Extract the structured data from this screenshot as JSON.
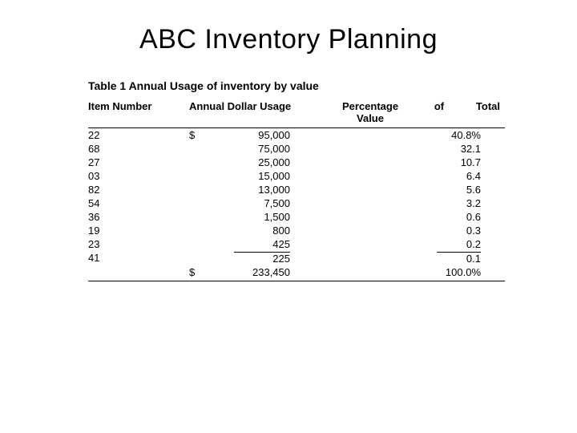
{
  "title": "ABC Inventory Planning",
  "table": {
    "type": "table",
    "caption": "Table 1 Annual Usage of inventory by value",
    "background_color": "#ffffff",
    "text_color": "#000000",
    "rule_color": "#000000",
    "font_family": "Arial",
    "caption_fontsize": 14,
    "header_fontsize": 13,
    "body_fontsize": 13,
    "columns": {
      "item": "Item Number",
      "dollar": "Annual Dollar Usage",
      "pct": "Percentage",
      "of": "of",
      "total": "Total",
      "value_sub": "Value"
    },
    "currency_symbol": "$",
    "rows": [
      {
        "item": "22",
        "amount": "95,000",
        "pct": "40.8%"
      },
      {
        "item": "68",
        "amount": "75,000",
        "pct": "32.1"
      },
      {
        "item": "27",
        "amount": "25,000",
        "pct": "10.7"
      },
      {
        "item": "03",
        "amount": "15,000",
        "pct": "6.4"
      },
      {
        "item": "82",
        "amount": "13,000",
        "pct": "5.6"
      },
      {
        "item": "54",
        "amount": "7,500",
        "pct": "3.2"
      },
      {
        "item": "36",
        "amount": "1,500",
        "pct": "0.6"
      },
      {
        "item": "19",
        "amount": "800",
        "pct": "0.3"
      },
      {
        "item": "23",
        "amount": "425",
        "pct": "0.2"
      },
      {
        "item": "41",
        "amount": "225",
        "pct": "0.1"
      }
    ],
    "totals": {
      "currency_symbol": "$",
      "amount": "233,450",
      "pct": "100.0%"
    }
  }
}
